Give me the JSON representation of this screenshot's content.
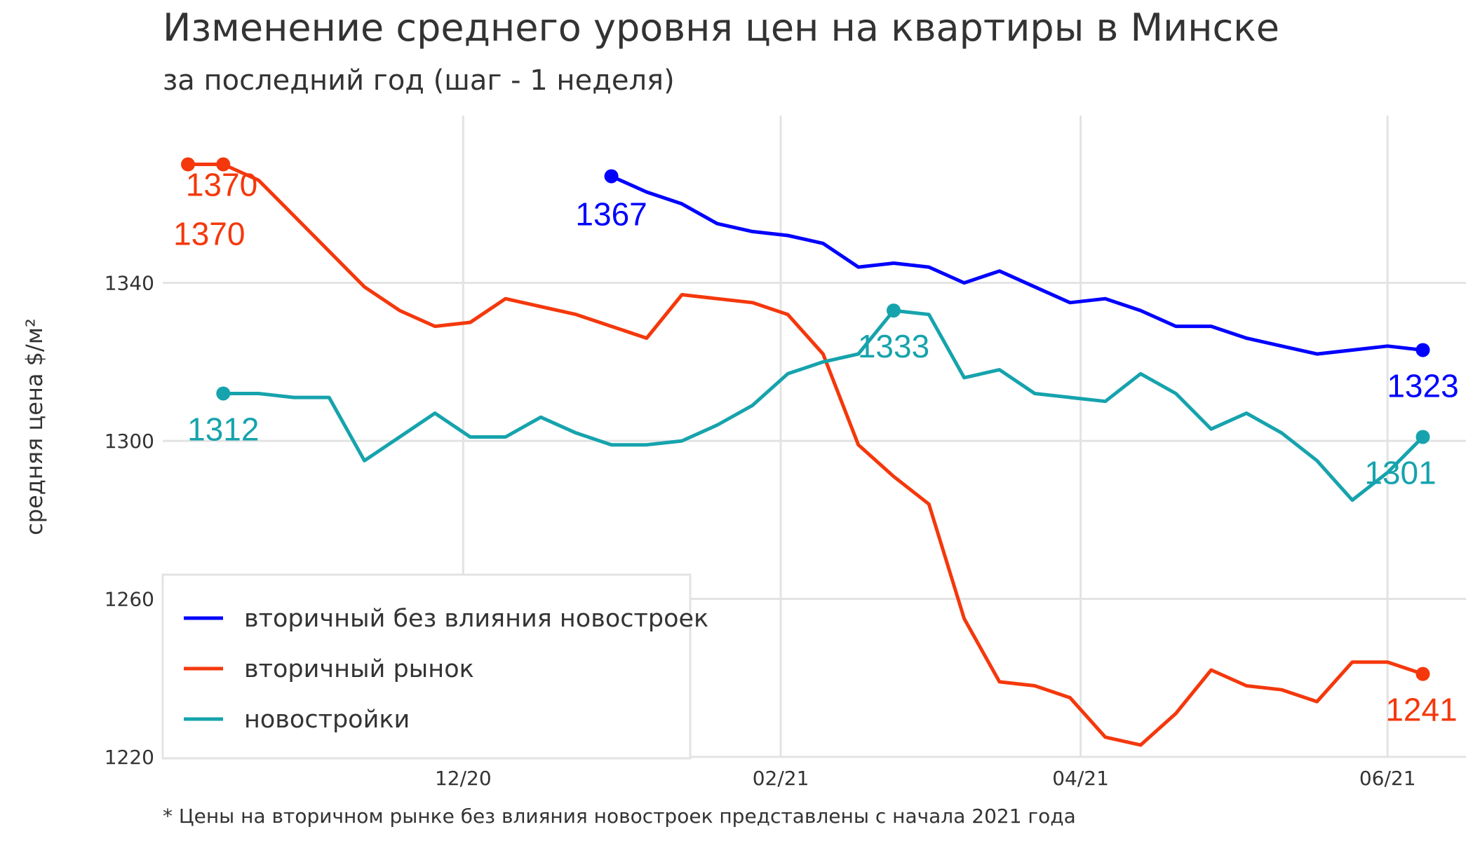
{
  "title": "Изменение среднего уровня цен на квартиры в Минске",
  "subtitle": "за последний год (шаг - 1 неделя)",
  "footnote": "* Цены на вторичном рынке без влияния новостроек представлены с начала 2021 года",
  "chart_data": {
    "type": "line",
    "ylabel": "средняя цена $/м²",
    "ylim": [
      1220,
      1385
    ],
    "yticks": [
      1220,
      1260,
      1300,
      1340
    ],
    "xticks": [
      "12/20",
      "02/21",
      "04/21",
      "06/21"
    ],
    "xticks_week_index": [
      7.8,
      16.8,
      25.3,
      34
    ],
    "grid": true,
    "legend_position": "bottom-left",
    "series": [
      {
        "name": "вторичный без влияния новостроек",
        "color": "#0000ff",
        "start_index": 12,
        "values": [
          1367,
          1363,
          1360,
          1355,
          1353,
          1352,
          1350,
          1344,
          1345,
          1344,
          1340,
          1343,
          1339,
          1335,
          1336,
          1333,
          1329,
          1329,
          1326,
          1324,
          1322,
          1323,
          1324,
          1323
        ],
        "labels": [
          {
            "index": 12,
            "text": "1367"
          },
          {
            "index": 35,
            "text": "1323"
          }
        ]
      },
      {
        "name": "вторичный рынок",
        "color": "#f4380c",
        "start_index": 0,
        "values": [
          1370,
          1370,
          1366,
          1357,
          1348,
          1339,
          1333,
          1329,
          1330,
          1336,
          1334,
          1332,
          1329,
          1326,
          1337,
          1336,
          1335,
          1332,
          1322,
          1299,
          1291,
          1284,
          1255,
          1239,
          1238,
          1235,
          1225,
          1223,
          1231,
          1242,
          1238,
          1237,
          1234,
          1244,
          1244,
          1241
        ],
        "labels": [
          {
            "index": 0,
            "text": "1370"
          },
          {
            "index": 1,
            "text": "1370"
          },
          {
            "index": 35,
            "text": "1241"
          }
        ]
      },
      {
        "name": "новостройки",
        "color": "#16a3ad",
        "start_index": 1,
        "values": [
          1312,
          1312,
          1311,
          1311,
          1295,
          1301,
          1307,
          1301,
          1301,
          1306,
          1302,
          1299,
          1299,
          1300,
          1304,
          1309,
          1317,
          1320,
          1322,
          1333,
          1332,
          1316,
          1318,
          1312,
          1311,
          1310,
          1317,
          1312,
          1303,
          1307,
          1302,
          1295,
          1285,
          1292,
          1301
        ],
        "labels": [
          {
            "index": 1,
            "text": "1312"
          },
          {
            "index": 20,
            "text": "1333"
          },
          {
            "index": 35,
            "text": "1301"
          }
        ]
      }
    ]
  },
  "colors": {
    "blue": "#0000ff",
    "red": "#f4380c",
    "teal": "#16a3ad",
    "grid": "#e3e3e3"
  }
}
